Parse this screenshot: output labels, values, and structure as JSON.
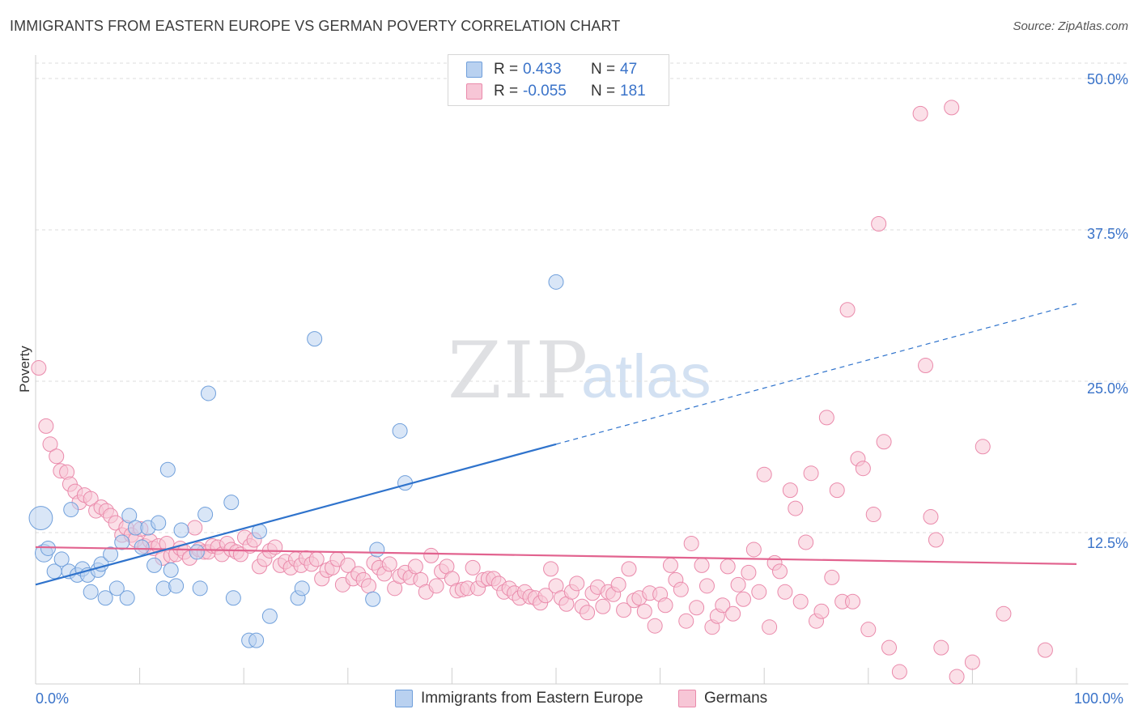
{
  "title": "IMMIGRANTS FROM EASTERN EUROPE VS GERMAN POVERTY CORRELATION CHART",
  "source": "Source: ZipAtlas.com",
  "watermark": {
    "zip": "ZIP",
    "atlas": "atlas"
  },
  "colors": {
    "blue_fill": "#b9d1f0",
    "blue_stroke": "#6f9fdb",
    "blue_line": "#2f73cc",
    "pink_fill": "#f7c6d6",
    "pink_stroke": "#ea8aab",
    "pink_line": "#e2638f",
    "grid": "#dcdcdc",
    "axis_text": "#3a73c9"
  },
  "legend": {
    "r_label": "R =",
    "n_label": "N =",
    "rows": [
      {
        "r": "0.433",
        "n": "47"
      },
      {
        "r": "-0.055",
        "n": "181"
      }
    ]
  },
  "chart_data": {
    "type": "scatter",
    "title": "IMMIGRANTS FROM EASTERN EUROPE VS GERMAN POVERTY CORRELATION CHART",
    "xlabel": "",
    "ylabel": "Poverty",
    "xlim": [
      0,
      100
    ],
    "ylim": [
      0,
      52
    ],
    "x_tick_labels": [
      "0.0%",
      "100.0%"
    ],
    "y_ticks": [
      12.5,
      25.0,
      37.5,
      50.0
    ],
    "y_tick_labels": [
      "12.5%",
      "25.0%",
      "37.5%",
      "50.0%"
    ],
    "series": [
      {
        "name": "Immigrants from Eastern Europe",
        "trend": {
          "x0": 0,
          "y0": 8.2,
          "x1": 50,
          "y1": 19.8,
          "dash_to_x": 100,
          "dash_to_y": 31.4
        },
        "points": [
          [
            0.5,
            13.7,
            1.6
          ],
          [
            0.8,
            10.8,
            1.2
          ],
          [
            1.2,
            11.2,
            1
          ],
          [
            1.8,
            9.3,
            1
          ],
          [
            2.5,
            10.3,
            1
          ],
          [
            3.2,
            9.3,
            1
          ],
          [
            3.4,
            14.4,
            1
          ],
          [
            4.0,
            9.0,
            1
          ],
          [
            4.5,
            9.5,
            1
          ],
          [
            5.0,
            9.0,
            1
          ],
          [
            5.3,
            7.6,
            1
          ],
          [
            6.0,
            9.4,
            1
          ],
          [
            6.3,
            9.9,
            1
          ],
          [
            6.7,
            7.1,
            1
          ],
          [
            7.2,
            10.7,
            1
          ],
          [
            7.8,
            7.9,
            1
          ],
          [
            8.3,
            11.7,
            1
          ],
          [
            8.8,
            7.1,
            1
          ],
          [
            9.0,
            13.9,
            1
          ],
          [
            9.6,
            12.9,
            1
          ],
          [
            10.2,
            11.3,
            1
          ],
          [
            10.8,
            12.9,
            1
          ],
          [
            11.4,
            9.8,
            1
          ],
          [
            11.8,
            13.3,
            1
          ],
          [
            12.3,
            7.9,
            1
          ],
          [
            12.7,
            17.7,
            1
          ],
          [
            13.0,
            9.4,
            1
          ],
          [
            13.5,
            8.1,
            1
          ],
          [
            14.0,
            12.7,
            1
          ],
          [
            15.5,
            10.9,
            1
          ],
          [
            15.8,
            7.9,
            1
          ],
          [
            16.3,
            14.0,
            1
          ],
          [
            16.6,
            24.0,
            1
          ],
          [
            18.8,
            15.0,
            1
          ],
          [
            19.0,
            7.1,
            1
          ],
          [
            20.5,
            3.6,
            1
          ],
          [
            21.2,
            3.6,
            1
          ],
          [
            21.5,
            12.6,
            1
          ],
          [
            22.5,
            5.6,
            1
          ],
          [
            25.2,
            7.1,
            1
          ],
          [
            25.6,
            7.9,
            1
          ],
          [
            26.8,
            28.5,
            1
          ],
          [
            32.4,
            7.0,
            1
          ],
          [
            32.8,
            11.1,
            1
          ],
          [
            35.0,
            20.9,
            1
          ],
          [
            35.5,
            16.6,
            1
          ],
          [
            50.0,
            33.2,
            1
          ]
        ]
      },
      {
        "name": "Germans",
        "trend": {
          "x0": 0,
          "y0": 11.3,
          "x1": 100,
          "y1": 9.9
        },
        "points": [
          [
            0.3,
            26.1
          ],
          [
            1.0,
            21.3
          ],
          [
            1.4,
            19.8
          ],
          [
            2.0,
            18.8
          ],
          [
            2.4,
            17.6
          ],
          [
            3.0,
            17.5
          ],
          [
            3.3,
            16.5
          ],
          [
            3.8,
            15.9
          ],
          [
            4.2,
            15.0
          ],
          [
            4.7,
            15.6
          ],
          [
            5.3,
            15.3
          ],
          [
            5.8,
            14.3
          ],
          [
            6.3,
            14.6
          ],
          [
            6.8,
            14.3
          ],
          [
            7.2,
            13.9
          ],
          [
            7.7,
            13.3
          ],
          [
            8.3,
            12.3
          ],
          [
            8.7,
            12.9
          ],
          [
            9.2,
            12.3
          ],
          [
            9.6,
            11.9
          ],
          [
            10.1,
            12.8
          ],
          [
            10.5,
            11.4
          ],
          [
            11.0,
            11.8
          ],
          [
            11.3,
            11.2
          ],
          [
            11.8,
            11.4
          ],
          [
            12.2,
            10.4
          ],
          [
            12.6,
            11.6
          ],
          [
            13.0,
            10.6
          ],
          [
            13.5,
            10.7
          ],
          [
            13.9,
            11.2
          ],
          [
            14.3,
            10.9
          ],
          [
            14.8,
            10.4
          ],
          [
            15.3,
            12.9
          ],
          [
            15.7,
            11.1
          ],
          [
            16.2,
            10.9
          ],
          [
            16.6,
            10.9
          ],
          [
            17.0,
            11.4
          ],
          [
            17.5,
            11.3
          ],
          [
            17.9,
            10.7
          ],
          [
            18.4,
            11.6
          ],
          [
            18.8,
            11.1
          ],
          [
            19.3,
            10.9
          ],
          [
            19.7,
            10.7
          ],
          [
            20.1,
            12.1
          ],
          [
            20.6,
            11.4
          ],
          [
            21.0,
            11.9
          ],
          [
            21.5,
            9.7
          ],
          [
            22.0,
            10.3
          ],
          [
            22.5,
            11.0
          ],
          [
            23.0,
            11.3
          ],
          [
            23.5,
            9.8
          ],
          [
            24.0,
            10.1
          ],
          [
            24.5,
            9.6
          ],
          [
            25.0,
            10.3
          ],
          [
            25.5,
            9.8
          ],
          [
            26.0,
            10.4
          ],
          [
            26.5,
            9.9
          ],
          [
            27.0,
            10.3
          ],
          [
            27.5,
            8.7
          ],
          [
            28.0,
            9.4
          ],
          [
            28.5,
            9.6
          ],
          [
            29.0,
            10.3
          ],
          [
            29.5,
            8.2
          ],
          [
            30.0,
            9.8
          ],
          [
            30.5,
            8.7
          ],
          [
            31.0,
            9.1
          ],
          [
            31.5,
            8.6
          ],
          [
            32.0,
            8.1
          ],
          [
            32.5,
            10.0
          ],
          [
            33.0,
            9.6
          ],
          [
            33.5,
            9.1
          ],
          [
            34.0,
            9.9
          ],
          [
            34.5,
            7.9
          ],
          [
            35.0,
            8.9
          ],
          [
            35.5,
            9.2
          ],
          [
            36.0,
            8.8
          ],
          [
            36.5,
            9.7
          ],
          [
            37.0,
            8.6
          ],
          [
            37.5,
            7.6
          ],
          [
            38.0,
            10.6
          ],
          [
            38.5,
            8.1
          ],
          [
            39.0,
            9.3
          ],
          [
            39.5,
            9.7
          ],
          [
            40.0,
            8.7
          ],
          [
            40.5,
            7.7
          ],
          [
            41.0,
            7.8
          ],
          [
            41.5,
            7.9
          ],
          [
            42.0,
            9.6
          ],
          [
            42.5,
            7.9
          ],
          [
            43.0,
            8.6
          ],
          [
            43.5,
            8.7
          ],
          [
            44.0,
            8.7
          ],
          [
            44.5,
            8.3
          ],
          [
            45.0,
            7.6
          ],
          [
            45.5,
            7.9
          ],
          [
            46.0,
            7.5
          ],
          [
            46.5,
            7.1
          ],
          [
            47.0,
            7.6
          ],
          [
            47.5,
            7.2
          ],
          [
            48.0,
            7.1
          ],
          [
            48.5,
            6.7
          ],
          [
            49.0,
            7.3
          ],
          [
            49.5,
            9.5
          ],
          [
            50.0,
            8.1
          ],
          [
            50.5,
            7.1
          ],
          [
            51.0,
            6.6
          ],
          [
            51.5,
            7.6
          ],
          [
            52.0,
            8.3
          ],
          [
            52.5,
            6.4
          ],
          [
            53.0,
            5.9
          ],
          [
            53.5,
            7.5
          ],
          [
            54.0,
            8.0
          ],
          [
            54.5,
            6.4
          ],
          [
            55.0,
            7.6
          ],
          [
            55.5,
            7.4
          ],
          [
            56.0,
            8.2
          ],
          [
            56.5,
            6.1
          ],
          [
            57.0,
            9.5
          ],
          [
            57.5,
            6.9
          ],
          [
            58.0,
            7.1
          ],
          [
            58.5,
            6.0
          ],
          [
            59.0,
            7.5
          ],
          [
            59.5,
            4.8
          ],
          [
            60.0,
            7.4
          ],
          [
            60.5,
            6.5
          ],
          [
            61.0,
            9.8
          ],
          [
            61.5,
            8.6
          ],
          [
            62.0,
            7.8
          ],
          [
            62.5,
            5.2
          ],
          [
            63.0,
            11.6
          ],
          [
            63.5,
            6.3
          ],
          [
            64.0,
            9.8
          ],
          [
            64.5,
            8.1
          ],
          [
            65.0,
            4.7
          ],
          [
            65.5,
            5.6
          ],
          [
            66.0,
            6.5
          ],
          [
            66.5,
            9.7
          ],
          [
            67.0,
            5.8
          ],
          [
            67.5,
            8.2
          ],
          [
            68.0,
            7.0
          ],
          [
            68.5,
            9.2
          ],
          [
            69.0,
            11.1
          ],
          [
            69.5,
            7.6
          ],
          [
            70.0,
            17.3
          ],
          [
            70.5,
            4.7
          ],
          [
            71.0,
            10.0
          ],
          [
            71.5,
            9.3
          ],
          [
            72.0,
            7.6
          ],
          [
            72.5,
            16.0
          ],
          [
            73.0,
            14.5
          ],
          [
            73.5,
            6.8
          ],
          [
            74.0,
            11.7
          ],
          [
            74.5,
            17.4
          ],
          [
            75.0,
            5.2
          ],
          [
            75.5,
            6.0
          ],
          [
            76.0,
            22.0
          ],
          [
            76.5,
            8.8
          ],
          [
            77.0,
            16.0
          ],
          [
            77.5,
            6.8
          ],
          [
            78.0,
            30.9
          ],
          [
            78.5,
            6.8
          ],
          [
            79.0,
            18.6
          ],
          [
            79.5,
            17.8
          ],
          [
            80.0,
            4.5
          ],
          [
            80.5,
            14.0
          ],
          [
            81.0,
            38.0
          ],
          [
            81.5,
            20.0
          ],
          [
            82.0,
            3.0
          ],
          [
            83.0,
            1.0
          ],
          [
            85.0,
            47.1
          ],
          [
            85.5,
            26.3
          ],
          [
            86.0,
            13.8
          ],
          [
            86.5,
            11.9
          ],
          [
            87.0,
            3.0
          ],
          [
            88.0,
            47.6
          ],
          [
            88.5,
            0.6
          ],
          [
            90.0,
            1.8
          ],
          [
            91.0,
            19.6
          ],
          [
            93.0,
            5.8
          ],
          [
            97.0,
            2.8
          ]
        ]
      }
    ]
  },
  "bottom_legend": [
    "Immigrants from Eastern Europe",
    "Germans"
  ]
}
